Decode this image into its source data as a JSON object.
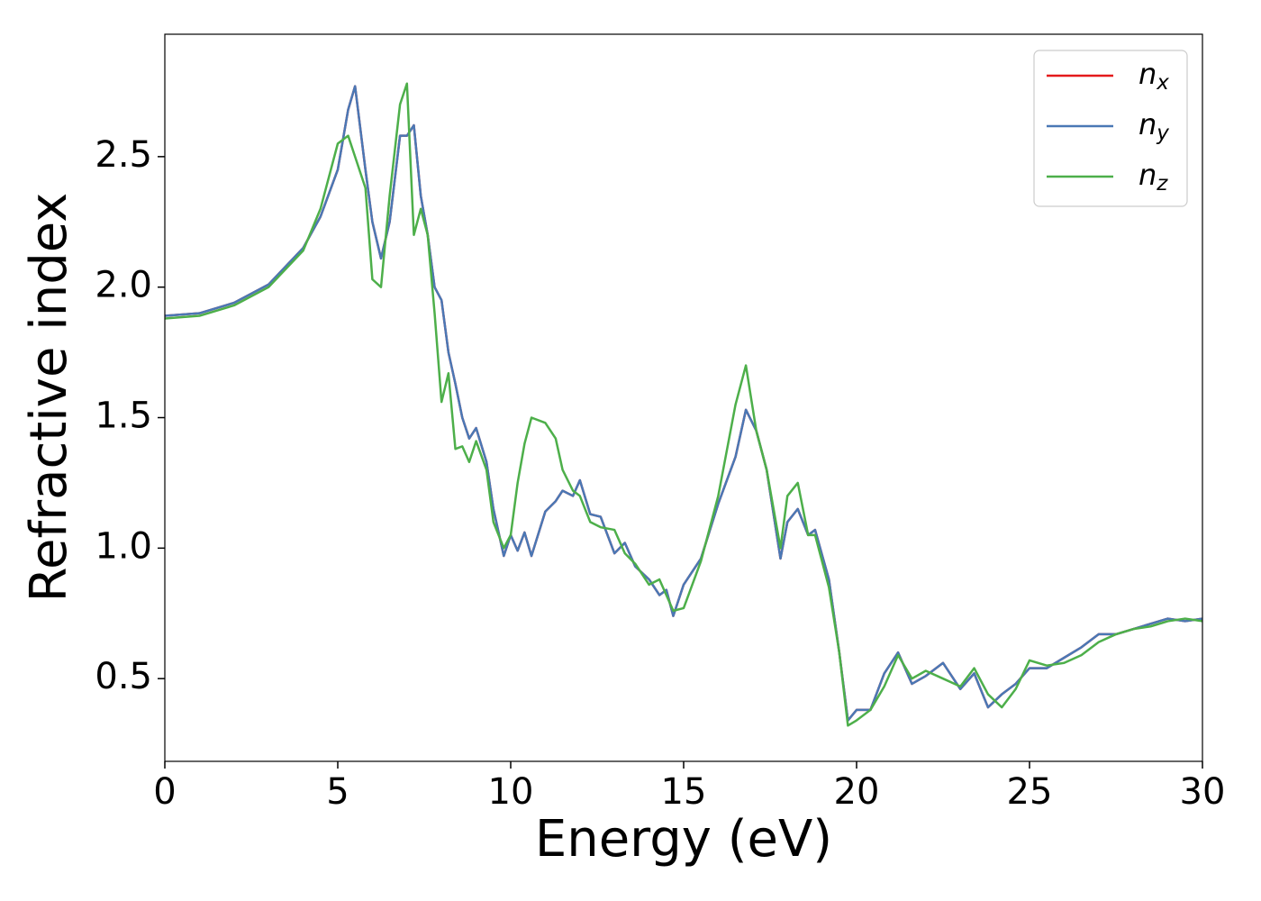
{
  "chart_data": {
    "type": "line",
    "xlabel": "Energy (eV)",
    "ylabel": "Refractive index",
    "x": [
      0,
      1,
      2,
      3,
      4,
      4.5,
      5,
      5.3,
      5.5,
      5.8,
      6.0,
      6.25,
      6.5,
      6.8,
      7.0,
      7.2,
      7.4,
      7.6,
      7.8,
      8.0,
      8.2,
      8.4,
      8.6,
      8.8,
      9.0,
      9.3,
      9.5,
      9.8,
      10.0,
      10.2,
      10.4,
      10.6,
      11.0,
      11.3,
      11.5,
      11.8,
      12.0,
      12.3,
      12.6,
      13.0,
      13.3,
      13.6,
      14.0,
      14.3,
      14.5,
      14.7,
      15.0,
      15.5,
      16.0,
      16.5,
      16.8,
      17.1,
      17.4,
      17.8,
      18.0,
      18.3,
      18.6,
      18.8,
      19.2,
      19.5,
      19.75,
      20.0,
      20.4,
      20.8,
      21.2,
      21.6,
      22.0,
      22.5,
      23.0,
      23.4,
      23.8,
      24.2,
      24.6,
      25.0,
      25.5,
      26.0,
      26.5,
      27.0,
      27.5,
      28.0,
      28.5,
      29.0,
      29.5,
      30.0
    ],
    "series": [
      {
        "name": "nx",
        "color": "#e41a1c",
        "values": [
          1.89,
          1.9,
          1.94,
          2.01,
          2.15,
          2.27,
          2.45,
          2.68,
          2.77,
          2.45,
          2.25,
          2.11,
          2.25,
          2.58,
          2.58,
          2.62,
          2.35,
          2.2,
          2.0,
          1.95,
          1.75,
          1.63,
          1.5,
          1.42,
          1.46,
          1.33,
          1.15,
          0.97,
          1.05,
          0.99,
          1.06,
          0.97,
          1.14,
          1.18,
          1.22,
          1.2,
          1.26,
          1.13,
          1.12,
          0.98,
          1.02,
          0.93,
          0.88,
          0.82,
          0.84,
          0.74,
          0.86,
          0.96,
          1.17,
          1.35,
          1.53,
          1.45,
          1.3,
          0.96,
          1.1,
          1.15,
          1.05,
          1.07,
          0.88,
          0.6,
          0.34,
          0.38,
          0.38,
          0.52,
          0.6,
          0.48,
          0.51,
          0.56,
          0.46,
          0.52,
          0.39,
          0.44,
          0.48,
          0.54,
          0.54,
          0.58,
          0.62,
          0.67,
          0.67,
          0.69,
          0.71,
          0.73,
          0.72,
          0.73
        ]
      },
      {
        "name": "ny",
        "color": "#4a78b5",
        "values": [
          1.89,
          1.9,
          1.94,
          2.01,
          2.15,
          2.27,
          2.45,
          2.68,
          2.77,
          2.45,
          2.25,
          2.11,
          2.25,
          2.58,
          2.58,
          2.62,
          2.35,
          2.2,
          2.0,
          1.95,
          1.75,
          1.63,
          1.5,
          1.42,
          1.46,
          1.33,
          1.15,
          0.97,
          1.05,
          0.99,
          1.06,
          0.97,
          1.14,
          1.18,
          1.22,
          1.2,
          1.26,
          1.13,
          1.12,
          0.98,
          1.02,
          0.93,
          0.88,
          0.82,
          0.84,
          0.74,
          0.86,
          0.96,
          1.17,
          1.35,
          1.53,
          1.45,
          1.3,
          0.96,
          1.1,
          1.15,
          1.05,
          1.07,
          0.88,
          0.6,
          0.34,
          0.38,
          0.38,
          0.52,
          0.6,
          0.48,
          0.51,
          0.56,
          0.46,
          0.52,
          0.39,
          0.44,
          0.48,
          0.54,
          0.54,
          0.58,
          0.62,
          0.67,
          0.67,
          0.69,
          0.71,
          0.73,
          0.72,
          0.73
        ]
      },
      {
        "name": "nz",
        "color": "#4daf4a",
        "values": [
          1.88,
          1.89,
          1.93,
          2.0,
          2.14,
          2.3,
          2.55,
          2.58,
          2.5,
          2.38,
          2.03,
          2.0,
          2.35,
          2.7,
          2.78,
          2.2,
          2.3,
          2.2,
          1.9,
          1.56,
          1.67,
          1.38,
          1.39,
          1.33,
          1.41,
          1.3,
          1.1,
          1.0,
          1.05,
          1.25,
          1.4,
          1.5,
          1.48,
          1.42,
          1.3,
          1.22,
          1.2,
          1.1,
          1.08,
          1.07,
          0.98,
          0.94,
          0.86,
          0.88,
          0.82,
          0.76,
          0.77,
          0.95,
          1.2,
          1.55,
          1.7,
          1.45,
          1.3,
          1.0,
          1.2,
          1.25,
          1.05,
          1.05,
          0.85,
          0.6,
          0.32,
          0.34,
          0.38,
          0.47,
          0.59,
          0.5,
          0.53,
          0.5,
          0.47,
          0.54,
          0.44,
          0.39,
          0.46,
          0.57,
          0.55,
          0.56,
          0.59,
          0.64,
          0.67,
          0.69,
          0.7,
          0.72,
          0.73,
          0.72
        ]
      }
    ],
    "xlim": [
      0,
      30
    ],
    "xticks": [
      0,
      5,
      10,
      15,
      20,
      25,
      30
    ],
    "ylim": [
      0.183,
      2.969
    ],
    "yticks": [
      0.5,
      {
        "value": 1,
        "label": "1.0"
      },
      1.5,
      {
        "value": 2,
        "label": "2.0"
      },
      2.5
    ],
    "grid": false,
    "legend": "upper right"
  }
}
